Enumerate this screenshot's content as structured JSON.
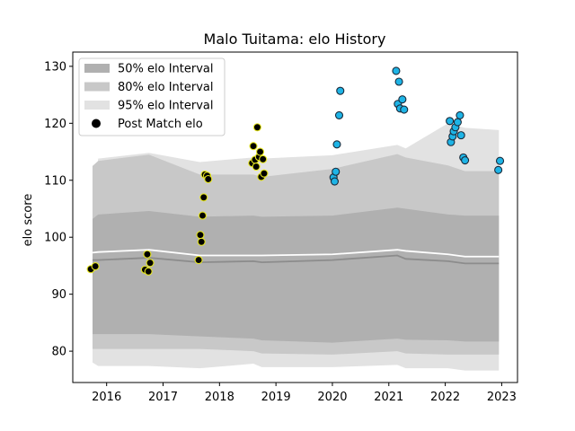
{
  "chart_data": {
    "type": "scatter",
    "title": "Malo Tuitama: elo History",
    "xlabel": "",
    "ylabel": "elo score",
    "xlim": [
      2015.4,
      2023.28
    ],
    "ylim": [
      74.5,
      132.5
    ],
    "x_ticks": [
      2016,
      2017,
      2018,
      2019,
      2020,
      2021,
      2022,
      2023
    ],
    "x_tick_labels": [
      "2016",
      "2017",
      "2018",
      "2019",
      "2020",
      "2021",
      "2022",
      "2023"
    ],
    "y_ticks": [
      80,
      90,
      100,
      110,
      120,
      130
    ],
    "y_tick_labels": [
      "80",
      "90",
      "100",
      "110",
      "120",
      "130"
    ],
    "legend": {
      "placement": "top-left",
      "entries": [
        {
          "label": "50% elo Interval",
          "color": "#b0b0b0"
        },
        {
          "label": "80% elo Interval",
          "color": "#c8c8c8"
        },
        {
          "label": "95% elo Interval",
          "color": "#e2e2e2"
        },
        {
          "label": "Post Match elo",
          "color": "#000000"
        }
      ]
    },
    "colors": {
      "band50": "#b0b0b0",
      "band80": "#c8c8c8",
      "band95": "#e2e2e2",
      "median_line": "#8c8c8c",
      "mean_line": "#ffffff",
      "point_early_fill": "#000000",
      "point_early_edge": "#e6e61e",
      "point_late_fill": "#1eb4e6",
      "point_late_edge": "#1a2a3a"
    },
    "band_x": [
      2015.75,
      2015.85,
      2016.75,
      2017.65,
      2018.6,
      2018.75,
      2020.0,
      2021.15,
      2021.3,
      2022.05,
      2022.35,
      2022.95
    ],
    "band95_upper": [
      105,
      113.8,
      114.8,
      113.2,
      114.0,
      113.8,
      114.4,
      116.2,
      115.6,
      120.0,
      119.2,
      118.8
    ],
    "band95_lower": [
      78,
      77.4,
      77.4,
      77.0,
      77.8,
      77.2,
      77.2,
      77.6,
      77.0,
      77.0,
      76.6,
      76.6
    ],
    "band80_upper": [
      112.5,
      113.4,
      114.5,
      111.0,
      111.0,
      110.6,
      112.0,
      114.6,
      114.0,
      112.6,
      111.6,
      111.6
    ],
    "band80_lower": [
      80.4,
      80.4,
      80.4,
      80.4,
      80.0,
      79.6,
      79.4,
      80.0,
      79.6,
      79.4,
      79.4,
      79.4
    ],
    "band50_upper": [
      103.2,
      104.0,
      104.6,
      103.6,
      103.8,
      103.6,
      103.8,
      105.2,
      105.0,
      104.0,
      103.8,
      103.8
    ],
    "band50_lower": [
      83.0,
      83.0,
      83.0,
      82.6,
      82.2,
      81.9,
      81.5,
      82.2,
      82.0,
      81.9,
      81.7,
      81.7
    ],
    "median_y": [
      96.0,
      96.0,
      96.4,
      95.6,
      95.8,
      95.6,
      96.0,
      96.8,
      96.2,
      95.8,
      95.4,
      95.4
    ],
    "mean_y": [
      97.3,
      97.4,
      97.8,
      96.8,
      96.8,
      96.8,
      97.0,
      97.8,
      97.6,
      97.0,
      96.6,
      96.6
    ],
    "points_early": [
      {
        "x": 2015.72,
        "y": 94.4
      },
      {
        "x": 2015.8,
        "y": 94.9
      },
      {
        "x": 2016.68,
        "y": 94.3
      },
      {
        "x": 2016.72,
        "y": 97.0
      },
      {
        "x": 2016.74,
        "y": 94.0
      },
      {
        "x": 2016.77,
        "y": 95.5
      },
      {
        "x": 2017.63,
        "y": 96.0
      },
      {
        "x": 2017.66,
        "y": 100.4
      },
      {
        "x": 2017.68,
        "y": 99.2
      },
      {
        "x": 2017.7,
        "y": 103.8
      },
      {
        "x": 2017.72,
        "y": 107.0
      },
      {
        "x": 2017.74,
        "y": 111.0
      },
      {
        "x": 2017.78,
        "y": 110.8
      },
      {
        "x": 2017.8,
        "y": 110.2
      },
      {
        "x": 2018.58,
        "y": 113.0
      },
      {
        "x": 2018.6,
        "y": 116.0
      },
      {
        "x": 2018.63,
        "y": 113.6
      },
      {
        "x": 2018.65,
        "y": 112.4
      },
      {
        "x": 2018.67,
        "y": 119.3
      },
      {
        "x": 2018.7,
        "y": 114.1
      },
      {
        "x": 2018.72,
        "y": 115.0
      },
      {
        "x": 2018.74,
        "y": 110.6
      },
      {
        "x": 2018.77,
        "y": 113.7
      },
      {
        "x": 2018.79,
        "y": 111.2
      }
    ],
    "points_late": [
      {
        "x": 2020.02,
        "y": 110.5
      },
      {
        "x": 2020.04,
        "y": 109.8
      },
      {
        "x": 2020.06,
        "y": 111.5
      },
      {
        "x": 2020.08,
        "y": 116.3
      },
      {
        "x": 2020.12,
        "y": 121.4
      },
      {
        "x": 2020.14,
        "y": 125.7
      },
      {
        "x": 2021.13,
        "y": 129.2
      },
      {
        "x": 2021.16,
        "y": 123.4
      },
      {
        "x": 2021.18,
        "y": 127.3
      },
      {
        "x": 2021.2,
        "y": 122.6
      },
      {
        "x": 2021.24,
        "y": 124.2
      },
      {
        "x": 2021.27,
        "y": 122.4
      },
      {
        "x": 2022.08,
        "y": 120.4
      },
      {
        "x": 2022.1,
        "y": 116.7
      },
      {
        "x": 2022.13,
        "y": 117.7
      },
      {
        "x": 2022.15,
        "y": 118.6
      },
      {
        "x": 2022.18,
        "y": 119.3
      },
      {
        "x": 2022.22,
        "y": 120.2
      },
      {
        "x": 2022.26,
        "y": 121.4
      },
      {
        "x": 2022.28,
        "y": 117.9
      },
      {
        "x": 2022.32,
        "y": 114.0
      },
      {
        "x": 2022.35,
        "y": 113.5
      },
      {
        "x": 2022.94,
        "y": 111.8
      },
      {
        "x": 2022.97,
        "y": 113.4
      }
    ]
  }
}
